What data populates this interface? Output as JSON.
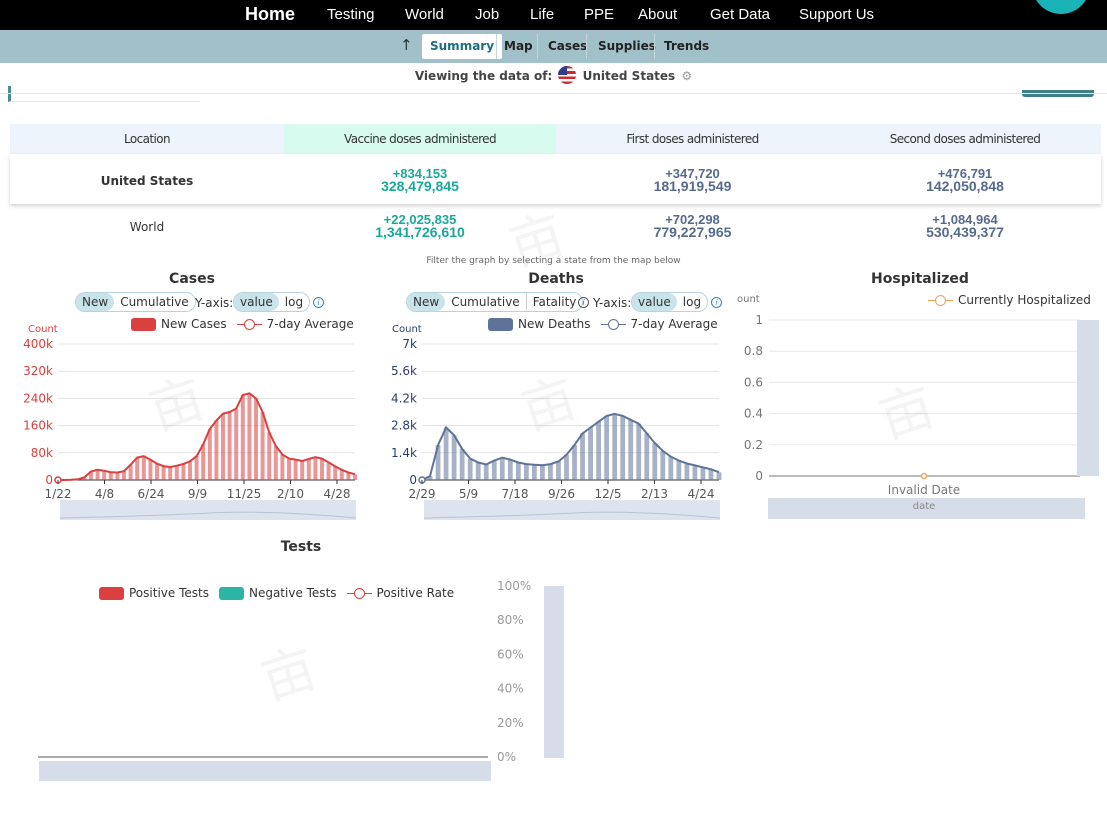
{
  "nav": {
    "items": [
      {
        "label": "Home",
        "active": true
      },
      {
        "label": "Testing"
      },
      {
        "label": "World"
      },
      {
        "label": "Job"
      },
      {
        "label": "Life"
      },
      {
        "label": "PPE"
      },
      {
        "label": "About"
      },
      {
        "label": "Get Data"
      },
      {
        "label": "Support Us"
      }
    ]
  },
  "subnav": {
    "tabs": [
      {
        "label": "Summary",
        "active": true
      },
      {
        "label": "Map"
      },
      {
        "label": "Cases"
      },
      {
        "label": "Supplies"
      },
      {
        "label": "Trends"
      }
    ]
  },
  "viewing": {
    "prefix": "Viewing the data of:",
    "location": "United States"
  },
  "table": {
    "headers": [
      "Location",
      "Vaccine doses administered",
      "First doses administered",
      "Second doses administered"
    ],
    "rows": [
      {
        "location": "United States",
        "vaccine_delta": "+834,153",
        "vaccine_total": "328,479,845",
        "first_delta": "+347,720",
        "first_total": "181,919,549",
        "second_delta": "+476,791",
        "second_total": "142,050,848"
      },
      {
        "location": "World",
        "vaccine_delta": "+22,025,835",
        "vaccine_total": "1,341,726,610",
        "first_delta": "+702,298",
        "first_total": "779,227,965",
        "second_delta": "+1,084,964",
        "second_total": "530,439,377"
      }
    ]
  },
  "filter_note": "Filter the graph  by selecting a state from the map below",
  "controls": {
    "new": "New",
    "cumulative": "Cumulative",
    "fatality": "Fatality",
    "yaxis": "Y-axis:",
    "value": "value",
    "log": "log"
  },
  "colors": {
    "cases": "#d9403f",
    "deaths": "#5e7398",
    "hosp": "#f1a05a",
    "negative": "#2ab5a5",
    "teal": "#1aa999",
    "slate": "#566a8c"
  },
  "chart_data": [
    {
      "type": "bar",
      "title": "Cases",
      "ylabel": "Count",
      "legend": [
        "New Cases",
        "7-day Average"
      ],
      "legend_placement": "top",
      "y_ticks": [
        "0",
        "80k",
        "160k",
        "240k",
        "320k",
        "400k"
      ],
      "ylim": [
        0,
        400000
      ],
      "x_ticks": [
        "1/22",
        "4/8",
        "6/24",
        "9/9",
        "11/25",
        "2/10",
        "4/28"
      ],
      "grid": true,
      "series": [
        {
          "name": "7-day Average",
          "values": [
            0,
            0,
            500,
            2000,
            8000,
            25000,
            30000,
            27000,
            23000,
            22000,
            26000,
            45000,
            66000,
            70000,
            60000,
            48000,
            41000,
            38000,
            42000,
            47000,
            55000,
            70000,
            105000,
            150000,
            175000,
            195000,
            200000,
            210000,
            250000,
            255000,
            240000,
            200000,
            140000,
            100000,
            75000,
            63000,
            60000,
            56000,
            62000,
            67000,
            63000,
            52000,
            40000,
            30000,
            22000,
            17000
          ]
        }
      ]
    },
    {
      "type": "bar",
      "title": "Deaths",
      "ylabel": "Count",
      "legend": [
        "New Deaths",
        "7-day Average"
      ],
      "legend_placement": "top",
      "y_ticks": [
        "0",
        "1.4k",
        "2.8k",
        "4.2k",
        "5.6k",
        "7k"
      ],
      "ylim": [
        0,
        7000
      ],
      "x_ticks": [
        "2/29",
        "5/9",
        "7/18",
        "9/26",
        "12/5",
        "2/13",
        "4/24"
      ],
      "grid": true,
      "series": [
        {
          "name": "7-day Average",
          "values": [
            0,
            200,
            1800,
            2700,
            2300,
            1600,
            1100,
            900,
            800,
            1000,
            1150,
            1050,
            900,
            820,
            780,
            760,
            820,
            950,
            1300,
            1800,
            2400,
            2700,
            3000,
            3300,
            3400,
            3300,
            3100,
            2900,
            2400,
            1900,
            1500,
            1200,
            1000,
            850,
            750,
            650,
            550,
            400
          ]
        }
      ]
    },
    {
      "type": "line",
      "title": "Hospitalized",
      "ylabel": "ount",
      "legend": [
        "Currently Hospitalized"
      ],
      "legend_placement": "top-right",
      "y_ticks": [
        "0",
        "0.2",
        "0.4",
        "0.6",
        "0.8",
        "1"
      ],
      "ylim": [
        0,
        1
      ],
      "x_ticks": [
        "Invalid Date"
      ],
      "xlabel": "date",
      "series": [
        {
          "name": "Currently Hospitalized",
          "values": [
            0
          ]
        }
      ]
    },
    {
      "type": "bar",
      "title": "Tests",
      "legend": [
        "Positive Tests",
        "Negative Tests",
        "Positive Rate"
      ],
      "legend_placement": "top",
      "y_ticks": [
        "0%",
        "20%",
        "40%",
        "60%",
        "80%",
        "100%"
      ],
      "ylim": [
        0,
        100
      ],
      "series": []
    }
  ]
}
